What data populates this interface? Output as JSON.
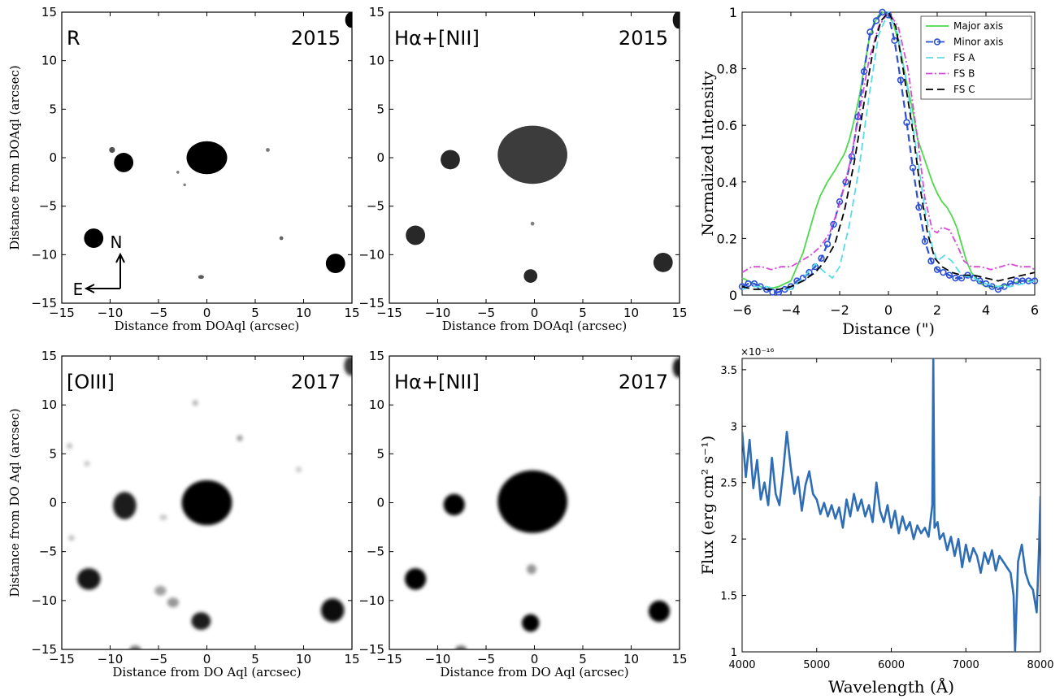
{
  "image_panels": [
    {
      "filter_label": "R",
      "year": "2015",
      "xlabel": "Distance from DOAql (arcsec)",
      "ylabel": "Distance from DOAql (arcsec)",
      "compass": {
        "north": "N",
        "east": "E"
      },
      "sources": [
        {
          "x": 0,
          "y": 0,
          "rx": 2.1,
          "ry": 1.7,
          "gray": 0
        },
        {
          "x": -8.6,
          "y": -0.5,
          "rx": 1.0,
          "ry": 1.0,
          "gray": 0
        },
        {
          "x": -11.7,
          "y": -8.3,
          "rx": 1.0,
          "ry": 1.0,
          "gray": 0
        },
        {
          "x": 13.3,
          "y": -10.9,
          "rx": 1.0,
          "ry": 1.0,
          "gray": 0
        },
        {
          "x": 14.9,
          "y": 14.2,
          "rx": 0.6,
          "ry": 0.8,
          "gray": 0
        },
        {
          "x": -9.8,
          "y": 0.8,
          "rx": 0.3,
          "ry": 0.3,
          "gray": 80
        },
        {
          "x": 6.3,
          "y": 0.8,
          "rx": 0.2,
          "ry": 0.2,
          "gray": 120
        },
        {
          "x": 7.7,
          "y": -8.3,
          "rx": 0.2,
          "ry": 0.2,
          "gray": 100
        },
        {
          "x": -0.6,
          "y": -12.3,
          "rx": 0.3,
          "ry": 0.2,
          "gray": 90
        },
        {
          "x": -2.3,
          "y": -2.8,
          "rx": 0.15,
          "ry": 0.15,
          "gray": 130
        },
        {
          "x": -3.0,
          "y": -1.5,
          "rx": 0.15,
          "ry": 0.15,
          "gray": 120
        }
      ]
    },
    {
      "filter_label": "Hα+[NII]",
      "year": "2015",
      "xlabel": "Distance from DOAql (arcsec)",
      "ylabel": "",
      "sources": [
        {
          "x": -0.2,
          "y": 0.3,
          "rx": 3.6,
          "ry": 3.0,
          "gray": 60
        },
        {
          "x": -8.7,
          "y": -0.2,
          "rx": 1.0,
          "ry": 1.0,
          "gray": 40
        },
        {
          "x": -12.3,
          "y": -8.0,
          "rx": 1.0,
          "ry": 1.0,
          "gray": 40
        },
        {
          "x": -0.4,
          "y": -12.2,
          "rx": 0.7,
          "ry": 0.7,
          "gray": 40
        },
        {
          "x": 13.3,
          "y": -10.8,
          "rx": 1.0,
          "ry": 1.0,
          "gray": 40
        },
        {
          "x": 14.9,
          "y": 14.2,
          "rx": 0.6,
          "ry": 0.9,
          "gray": 20
        },
        {
          "x": -0.2,
          "y": -6.8,
          "rx": 0.2,
          "ry": 0.2,
          "gray": 130
        }
      ]
    },
    {
      "filter_label": "[OIII]",
      "year": "2017",
      "xlabel": "Distance from DO Aql (arcsec)",
      "ylabel": "Distance from DO Aql (arcsec)",
      "sources": [
        {
          "x": 0,
          "y": 0,
          "rx": 2.6,
          "ry": 2.3,
          "gray": 0
        },
        {
          "x": -8.5,
          "y": -0.3,
          "rx": 1.2,
          "ry": 1.4,
          "gray": 30
        },
        {
          "x": -12.2,
          "y": -7.8,
          "rx": 1.2,
          "ry": 1.1,
          "gray": 20
        },
        {
          "x": -0.6,
          "y": -12.1,
          "rx": 1.0,
          "ry": 0.9,
          "gray": 30
        },
        {
          "x": 13.0,
          "y": -11.0,
          "rx": 1.2,
          "ry": 1.2,
          "gray": 10
        },
        {
          "x": 14.9,
          "y": 14.0,
          "rx": 0.7,
          "ry": 1.0,
          "gray": 60
        },
        {
          "x": -4.8,
          "y": -9.0,
          "rx": 0.6,
          "ry": 0.5,
          "gray": 160
        },
        {
          "x": -3.5,
          "y": -10.2,
          "rx": 0.6,
          "ry": 0.5,
          "gray": 150
        },
        {
          "x": -7.4,
          "y": -15.0,
          "rx": 0.6,
          "ry": 0.4,
          "gray": 120
        },
        {
          "x": -1.2,
          "y": 10.2,
          "rx": 0.3,
          "ry": 0.3,
          "gray": 180
        },
        {
          "x": 3.4,
          "y": 6.6,
          "rx": 0.3,
          "ry": 0.3,
          "gray": 150
        },
        {
          "x": -14.2,
          "y": 5.8,
          "rx": 0.3,
          "ry": 0.3,
          "gray": 190
        },
        {
          "x": -12.4,
          "y": 4.0,
          "rx": 0.3,
          "ry": 0.3,
          "gray": 200
        },
        {
          "x": -14.0,
          "y": -3.6,
          "rx": 0.3,
          "ry": 0.3,
          "gray": 190
        },
        {
          "x": 9.5,
          "y": 3.4,
          "rx": 0.3,
          "ry": 0.3,
          "gray": 200
        },
        {
          "x": -4.5,
          "y": -1.5,
          "rx": 0.4,
          "ry": 0.3,
          "gray": 200
        }
      ]
    },
    {
      "filter_label": "Hα+[NII]",
      "year": "2017",
      "xlabel": "Distance from DO Aql (arcsec)",
      "ylabel": "",
      "sources": [
        {
          "x": -0.2,
          "y": 0.1,
          "rx": 3.6,
          "ry": 3.2,
          "gray": 0
        },
        {
          "x": -8.3,
          "y": -0.2,
          "rx": 1.1,
          "ry": 1.1,
          "gray": 0
        },
        {
          "x": -12.3,
          "y": -7.8,
          "rx": 1.1,
          "ry": 1.1,
          "gray": 0
        },
        {
          "x": -0.4,
          "y": -12.3,
          "rx": 0.9,
          "ry": 0.9,
          "gray": 0
        },
        {
          "x": 12.9,
          "y": -11.1,
          "rx": 1.1,
          "ry": 1.1,
          "gray": 0
        },
        {
          "x": 14.9,
          "y": 13.8,
          "rx": 0.6,
          "ry": 1.0,
          "gray": 30
        },
        {
          "x": -0.3,
          "y": -6.8,
          "rx": 0.5,
          "ry": 0.5,
          "gray": 150
        },
        {
          "x": -7.6,
          "y": -15.0,
          "rx": 0.6,
          "ry": 0.4,
          "gray": 110
        }
      ]
    }
  ],
  "chart_data": [
    {
      "type": "line",
      "xlabel": "Distance (\")",
      "ylabel": "Normalized Intensity",
      "xlim": [
        -6,
        6
      ],
      "ylim": [
        0,
        1
      ],
      "xticks": [
        "-6",
        "-4",
        "-2",
        "0",
        "2",
        "4",
        "6"
      ],
      "yticks": [
        "0",
        "0.2",
        "0.4",
        "0.6",
        "0.8",
        "1"
      ],
      "legend_position": "top-right",
      "series": [
        {
          "name": "Major axis",
          "color": "#4cd94c",
          "style": "solid",
          "x": [
            -6,
            -5.5,
            -5,
            -4.5,
            -4,
            -3.5,
            -3,
            -2.8,
            -2.5,
            -2.2,
            -2.0,
            -1.8,
            -1.6,
            -1.4,
            -1.2,
            -1.0,
            -0.8,
            -0.6,
            -0.4,
            -0.2,
            0,
            0.2,
            0.4,
            0.6,
            0.8,
            1.0,
            1.2,
            1.4,
            1.6,
            1.8,
            2.0,
            2.2,
            2.4,
            2.6,
            2.8,
            3.0,
            3.2,
            3.4,
            3.6,
            3.8,
            4.0,
            4.5,
            5,
            5.5,
            6
          ],
          "y": [
            0.06,
            0.04,
            0.02,
            0.03,
            0.05,
            0.15,
            0.3,
            0.35,
            0.4,
            0.44,
            0.47,
            0.5,
            0.55,
            0.62,
            0.7,
            0.8,
            0.9,
            0.96,
            0.99,
            1.0,
            0.99,
            0.96,
            0.9,
            0.82,
            0.73,
            0.65,
            0.55,
            0.5,
            0.45,
            0.4,
            0.36,
            0.33,
            0.31,
            0.28,
            0.24,
            0.18,
            0.12,
            0.08,
            0.06,
            0.04,
            0.03,
            0.03,
            0.04,
            0.05,
            0.05
          ]
        },
        {
          "name": "Minor axis",
          "color": "#2a4fd8",
          "style": "dash-marker",
          "x": [
            -6,
            -5.75,
            -5.5,
            -5.25,
            -5,
            -4.75,
            -4.5,
            -4.25,
            -4,
            -3.75,
            -3.5,
            -3.25,
            -3.0,
            -2.75,
            -2.5,
            -2.25,
            -2.0,
            -1.75,
            -1.5,
            -1.25,
            -1.0,
            -0.75,
            -0.5,
            -0.25,
            0,
            0.25,
            0.5,
            0.75,
            1.0,
            1.25,
            1.5,
            1.75,
            2.0,
            2.25,
            2.5,
            2.75,
            3.0,
            3.25,
            3.5,
            3.75,
            4.0,
            4.25,
            4.5,
            4.75,
            5.0,
            5.25,
            5.5,
            5.75,
            6
          ],
          "y": [
            0.03,
            0.04,
            0.04,
            0.03,
            0.02,
            0.01,
            0.01,
            0.02,
            0.03,
            0.05,
            0.06,
            0.08,
            0.1,
            0.13,
            0.18,
            0.25,
            0.33,
            0.4,
            0.49,
            0.63,
            0.79,
            0.93,
            0.97,
            1.0,
            0.99,
            0.9,
            0.76,
            0.61,
            0.45,
            0.31,
            0.19,
            0.12,
            0.09,
            0.08,
            0.07,
            0.06,
            0.06,
            0.07,
            0.06,
            0.05,
            0.04,
            0.03,
            0.02,
            0.03,
            0.04,
            0.05,
            0.05,
            0.05,
            0.05
          ]
        },
        {
          "name": "FS A",
          "color": "#59dce8",
          "style": "dashed",
          "x": [
            -6,
            -5.5,
            -5,
            -4.5,
            -4,
            -3.5,
            -3.0,
            -2.6,
            -2.3,
            -2.0,
            -1.6,
            -1.2,
            -0.8,
            -0.4,
            0,
            0.4,
            0.8,
            1.2,
            1.5,
            1.8,
            2.0,
            2.3,
            2.6,
            3.0,
            3.5,
            4.0,
            4.5,
            5.0,
            5.5,
            6
          ],
          "y": [
            0.02,
            0.03,
            0.03,
            0.02,
            0.02,
            0.06,
            0.11,
            0.08,
            0.06,
            0.1,
            0.25,
            0.45,
            0.7,
            0.92,
            1.0,
            0.92,
            0.72,
            0.48,
            0.3,
            0.17,
            0.12,
            0.14,
            0.12,
            0.07,
            0.06,
            0.04,
            0.03,
            0.03,
            0.04,
            0.05
          ]
        },
        {
          "name": "FS B",
          "color": "#d84ad8",
          "style": "dash-dot",
          "x": [
            -6,
            -5.6,
            -5.2,
            -4.8,
            -4.4,
            -4.0,
            -3.6,
            -3.2,
            -2.8,
            -2.4,
            -2.0,
            -1.6,
            -1.2,
            -0.8,
            -0.4,
            0,
            0.4,
            0.8,
            1.2,
            1.5,
            1.8,
            2.0,
            2.2,
            2.5,
            2.8,
            3.1,
            3.4,
            3.8,
            4.2,
            4.6,
            5.0,
            5.4,
            5.8,
            6
          ],
          "y": [
            0.08,
            0.1,
            0.1,
            0.09,
            0.1,
            0.1,
            0.12,
            0.14,
            0.17,
            0.22,
            0.32,
            0.46,
            0.64,
            0.83,
            0.95,
            1.0,
            0.95,
            0.8,
            0.55,
            0.34,
            0.23,
            0.22,
            0.24,
            0.23,
            0.18,
            0.12,
            0.1,
            0.1,
            0.09,
            0.1,
            0.11,
            0.1,
            0.1,
            0.09
          ]
        },
        {
          "name": "FS C",
          "color": "#000000",
          "style": "dashed",
          "x": [
            -6,
            -5.5,
            -5,
            -4.5,
            -4,
            -3.5,
            -3.0,
            -2.6,
            -2.2,
            -1.8,
            -1.4,
            -1.0,
            -0.6,
            -0.3,
            0,
            0.3,
            0.6,
            1.0,
            1.3,
            1.6,
            1.9,
            2.2,
            2.6,
            3.0,
            3.5,
            4.0,
            4.5,
            5.0,
            5.5,
            6
          ],
          "y": [
            0.03,
            0.02,
            0.02,
            0.02,
            0.03,
            0.05,
            0.08,
            0.12,
            0.18,
            0.3,
            0.47,
            0.68,
            0.88,
            0.97,
            1.0,
            0.95,
            0.8,
            0.58,
            0.38,
            0.22,
            0.13,
            0.1,
            0.08,
            0.07,
            0.07,
            0.06,
            0.05,
            0.06,
            0.07,
            0.08
          ]
        }
      ]
    },
    {
      "type": "line",
      "xlabel": "Wavelength (Å)",
      "ylabel": "Flux (erg cm² s⁻¹)",
      "y_multiplier": "×10⁻¹⁶",
      "xlim": [
        4000,
        8000
      ],
      "ylim": [
        1,
        3.6
      ],
      "xticks": [
        "4000",
        "5000",
        "6000",
        "7000",
        "8000"
      ],
      "yticks": [
        "1",
        "1.5",
        "2",
        "2.5",
        "3",
        "3.5"
      ],
      "series": [
        {
          "color": "#2f6db5",
          "style": "solid",
          "x": [
            4000,
            4050,
            4100,
            4150,
            4200,
            4250,
            4300,
            4350,
            4400,
            4450,
            4500,
            4550,
            4600,
            4650,
            4700,
            4750,
            4800,
            4850,
            4900,
            4950,
            5000,
            5050,
            5100,
            5150,
            5200,
            5250,
            5300,
            5350,
            5400,
            5450,
            5500,
            5550,
            5600,
            5650,
            5700,
            5750,
            5800,
            5850,
            5900,
            5950,
            6000,
            6050,
            6100,
            6150,
            6200,
            6250,
            6300,
            6350,
            6400,
            6450,
            6500,
            6550,
            6563,
            6580,
            6620,
            6650,
            6700,
            6750,
            6800,
            6850,
            6900,
            6950,
            7000,
            7050,
            7100,
            7150,
            7200,
            7250,
            7300,
            7350,
            7400,
            7450,
            7500,
            7550,
            7600,
            7640,
            7660,
            7680,
            7700,
            7750,
            7800,
            7850,
            7900,
            7950,
            7980,
            8000
          ],
          "y": [
            2.95,
            2.55,
            2.88,
            2.45,
            2.7,
            2.35,
            2.5,
            2.3,
            2.72,
            2.4,
            2.3,
            2.6,
            2.95,
            2.65,
            2.4,
            2.55,
            2.25,
            2.48,
            2.6,
            2.4,
            2.35,
            2.22,
            2.32,
            2.2,
            2.3,
            2.18,
            2.28,
            2.1,
            2.35,
            2.2,
            2.4,
            2.25,
            2.35,
            2.2,
            2.3,
            2.15,
            2.5,
            2.25,
            2.15,
            2.3,
            2.1,
            2.25,
            2.05,
            2.2,
            2.08,
            2.15,
            2.0,
            2.12,
            2.05,
            2.1,
            2.02,
            2.3,
            3.6,
            2.1,
            2.15,
            2.0,
            2.05,
            1.9,
            2.02,
            1.85,
            2.0,
            1.75,
            1.95,
            1.8,
            1.92,
            1.85,
            1.7,
            1.88,
            1.78,
            1.9,
            1.72,
            1.85,
            1.8,
            1.75,
            1.7,
            1.5,
            1.0,
            1.4,
            1.8,
            1.95,
            1.7,
            1.6,
            1.55,
            1.35,
            1.9,
            2.38
          ]
        }
      ]
    }
  ]
}
